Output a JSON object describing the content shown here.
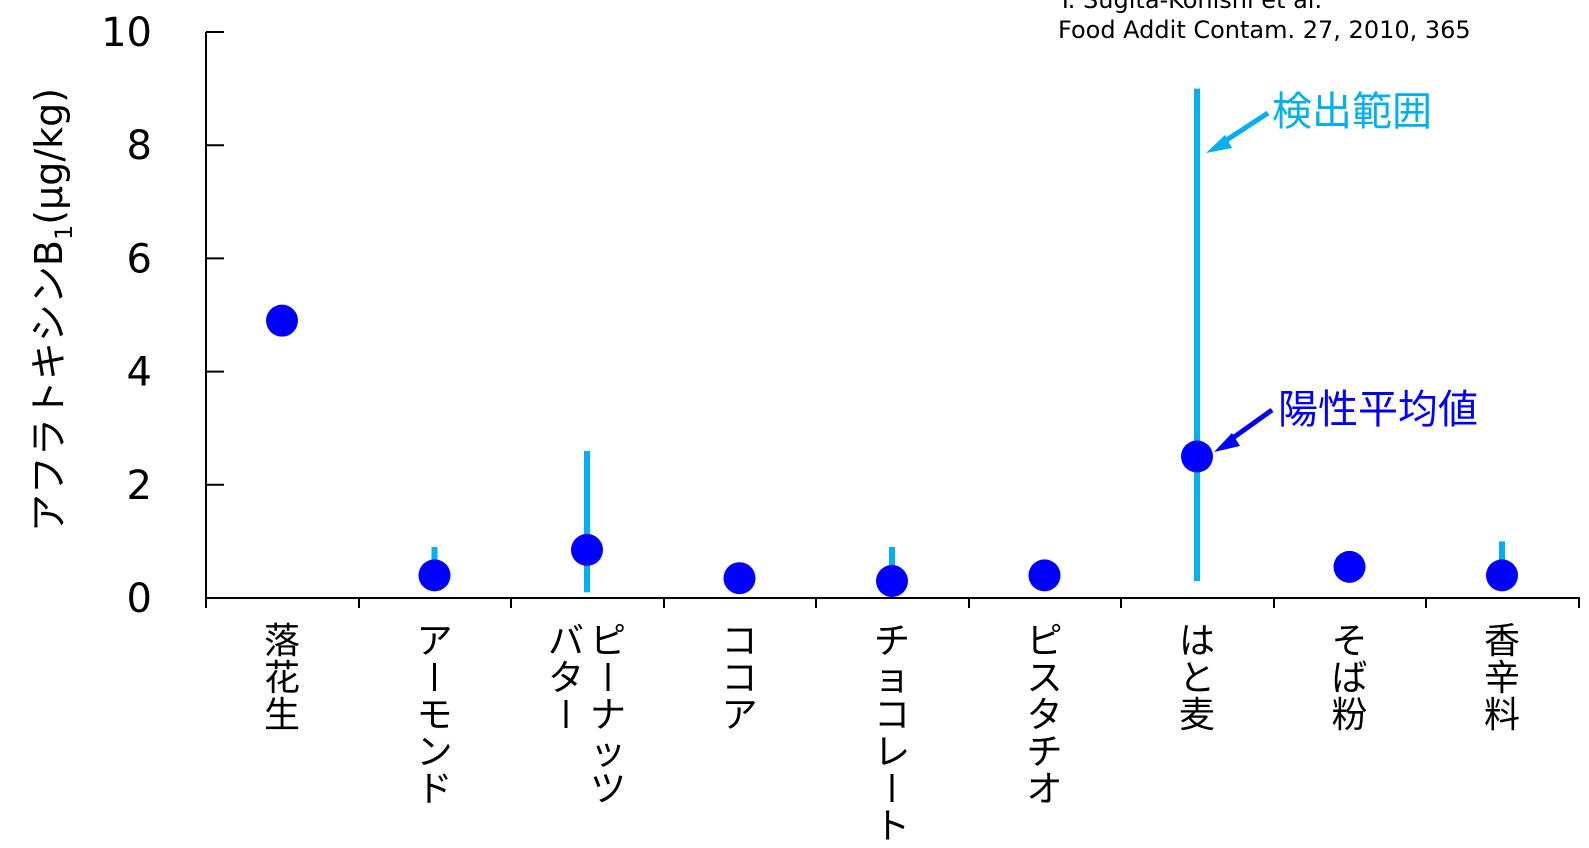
{
  "citation": {
    "line1": "Y. Sugita-Konishi et al.",
    "line2": "Food Addit Contam. 27, 2010, 365"
  },
  "colors": {
    "dot": "#0000ff",
    "range": "#00b0f0",
    "axis": "#000000"
  },
  "annotations": {
    "range_label": "検出範囲",
    "mean_label": "陽性平均値"
  },
  "chart_data": {
    "type": "scatter",
    "title": "",
    "ylabel": "アフラトキシンB",
    "ylabel_subscript": "1",
    "ylabel_unit": "(μg/kg)",
    "xlabel": "",
    "ylim": [
      0,
      10
    ],
    "yticks": [
      0,
      2,
      4,
      6,
      8,
      10
    ],
    "categories": [
      {
        "name": "落花生",
        "lines": [
          "落花生"
        ],
        "mean": 4.9,
        "range": null
      },
      {
        "name": "アーモンド",
        "lines": [
          "アーモンド"
        ],
        "mean": 0.4,
        "range": [
          0.4,
          0.9
        ]
      },
      {
        "name": "ピーナッツバター",
        "lines": [
          "ピーナッツ",
          "バター"
        ],
        "mean": 0.85,
        "range": [
          0.1,
          2.6
        ]
      },
      {
        "name": "ココア",
        "lines": [
          "ココア"
        ],
        "mean": 0.35,
        "range": null
      },
      {
        "name": "チョコレート",
        "lines": [
          "チョコレート"
        ],
        "mean": 0.3,
        "range": [
          0.3,
          0.9
        ]
      },
      {
        "name": "ピスタチオ",
        "lines": [
          "ピスタチオ"
        ],
        "mean": 0.4,
        "range": null
      },
      {
        "name": "はと麦",
        "lines": [
          "はと麦"
        ],
        "mean": 2.5,
        "range": [
          0.3,
          9.0
        ]
      },
      {
        "name": "そば粉",
        "lines": [
          "そば粉"
        ],
        "mean": 0.55,
        "range": null
      },
      {
        "name": "香辛料",
        "lines": [
          "香辛料"
        ],
        "mean": 0.4,
        "range": [
          0.4,
          1.0
        ]
      }
    ]
  }
}
